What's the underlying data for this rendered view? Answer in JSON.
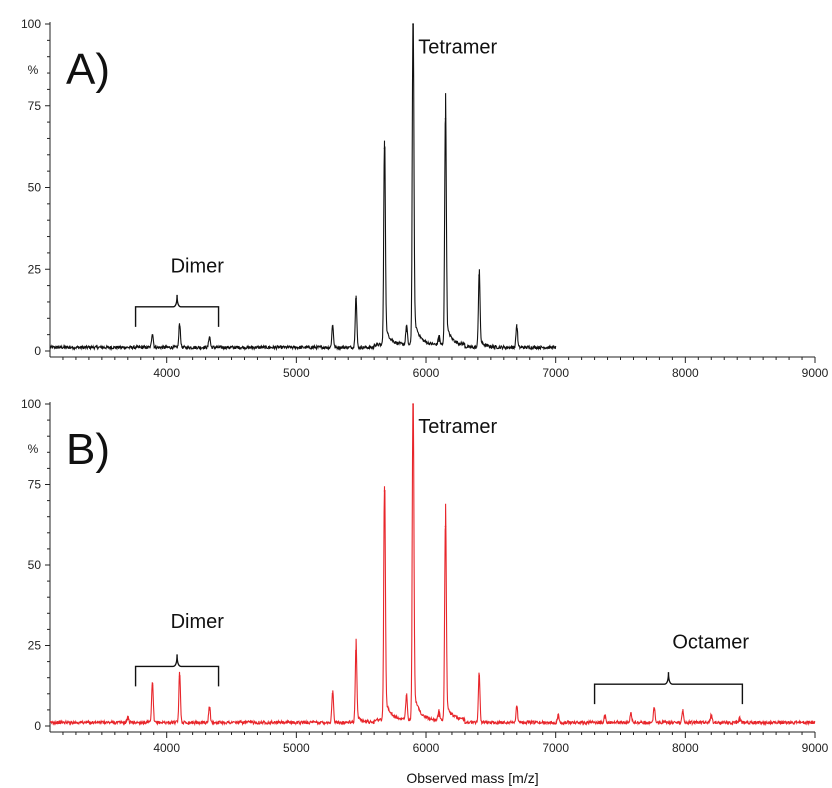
{
  "chart_data": [
    {
      "type": "line",
      "panel_label": "A)",
      "xlim": [
        3100,
        9000
      ],
      "ylim": [
        0,
        100
      ],
      "x_ticks": [
        4000,
        5000,
        6000,
        7000,
        8000,
        9000
      ],
      "y_ticks": [
        0,
        25,
        50,
        75,
        100
      ],
      "ylabel": "%",
      "xlabel": "",
      "series_color": "#111111",
      "x_end": 7000,
      "peaks": [
        {
          "x": 3890,
          "y": 4.5
        },
        {
          "x": 4100,
          "y": 7.5
        },
        {
          "x": 4330,
          "y": 3.5
        },
        {
          "x": 5280,
          "y": 7
        },
        {
          "x": 5460,
          "y": 16
        },
        {
          "x": 5680,
          "y": 62
        },
        {
          "x": 5850,
          "y": 6
        },
        {
          "x": 5900,
          "y": 100
        },
        {
          "x": 6100,
          "y": 3
        },
        {
          "x": 6150,
          "y": 71
        },
        {
          "x": 6410,
          "y": 23
        },
        {
          "x": 6700,
          "y": 7
        }
      ],
      "annotations": [
        {
          "text": "Tetramer",
          "x": 5940,
          "y": 91
        },
        {
          "text": "Dimer",
          "x": 4030,
          "y": 24
        }
      ],
      "brackets": [
        {
          "label": "Dimer",
          "x_start": 3760,
          "x_end": 4400,
          "y": 13.5
        }
      ]
    },
    {
      "type": "line",
      "panel_label": "B)",
      "xlim": [
        3100,
        9000
      ],
      "ylim": [
        0,
        100
      ],
      "x_ticks": [
        4000,
        5000,
        6000,
        7000,
        8000,
        9000
      ],
      "y_ticks": [
        0,
        25,
        50,
        75,
        100
      ],
      "ylabel": "%",
      "xlabel": "Observed mass [m/z]",
      "series_color": "#e8262b",
      "x_end": 9000,
      "peaks": [
        {
          "x": 3700,
          "y": 2
        },
        {
          "x": 3890,
          "y": 12.5
        },
        {
          "x": 4100,
          "y": 15.5
        },
        {
          "x": 4330,
          "y": 5
        },
        {
          "x": 5280,
          "y": 10
        },
        {
          "x": 5460,
          "y": 23.5
        },
        {
          "x": 5680,
          "y": 73
        },
        {
          "x": 5850,
          "y": 8
        },
        {
          "x": 5900,
          "y": 100
        },
        {
          "x": 6100,
          "y": 3
        },
        {
          "x": 6150,
          "y": 62
        },
        {
          "x": 6410,
          "y": 15.5
        },
        {
          "x": 6700,
          "y": 5.5
        },
        {
          "x": 7020,
          "y": 2.5
        },
        {
          "x": 7380,
          "y": 2.5
        },
        {
          "x": 7580,
          "y": 3.5
        },
        {
          "x": 7760,
          "y": 5
        },
        {
          "x": 7980,
          "y": 4
        },
        {
          "x": 8200,
          "y": 2.5
        },
        {
          "x": 8420,
          "y": 1.5
        }
      ],
      "annotations": [
        {
          "text": "Tetramer",
          "x": 5940,
          "y": 91
        },
        {
          "text": "Dimer",
          "x": 4030,
          "y": 30.5
        },
        {
          "text": "Octamer",
          "x": 7900,
          "y": 24
        }
      ],
      "brackets": [
        {
          "label": "Dimer",
          "x_start": 3760,
          "x_end": 4400,
          "y": 18.5
        },
        {
          "label": "Octamer",
          "x_start": 7300,
          "x_end": 8440,
          "y": 13
        }
      ]
    }
  ]
}
